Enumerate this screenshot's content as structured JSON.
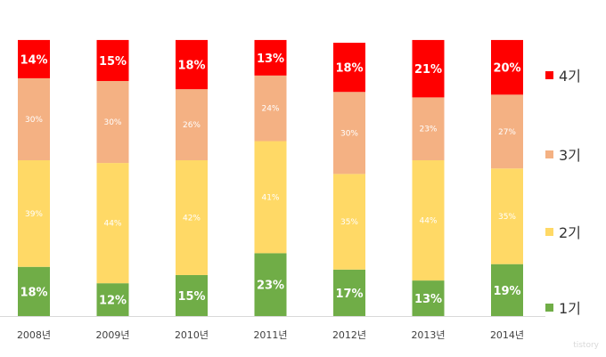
{
  "chart_data": {
    "type": "bar",
    "stacked": true,
    "normalized": true,
    "categories": [
      "2008년",
      "2009년",
      "2010년",
      "2011년",
      "2012년",
      "2013년",
      "2014년"
    ],
    "series": [
      {
        "name": "1기",
        "color": "#70ad47",
        "values": [
          18,
          12,
          15,
          23,
          17,
          13,
          19
        ]
      },
      {
        "name": "2기",
        "color": "#ffd966",
        "values": [
          39,
          44,
          42,
          41,
          35,
          44,
          35
        ]
      },
      {
        "name": "3기",
        "color": "#f4b183",
        "values": [
          30,
          30,
          26,
          24,
          30,
          23,
          27
        ]
      },
      {
        "name": "4기",
        "color": "#ff0000",
        "values": [
          14,
          15,
          18,
          13,
          18,
          21,
          20
        ]
      }
    ],
    "data_label_suffix": "%",
    "legend_position": "right",
    "grid": false
  },
  "legend": {
    "items": [
      {
        "label": "4기",
        "color": "#ff0000"
      },
      {
        "label": "3기",
        "color": "#f4b183"
      },
      {
        "label": "2기",
        "color": "#ffd966"
      },
      {
        "label": "1기",
        "color": "#70ad47"
      }
    ]
  },
  "watermark": "tistory"
}
